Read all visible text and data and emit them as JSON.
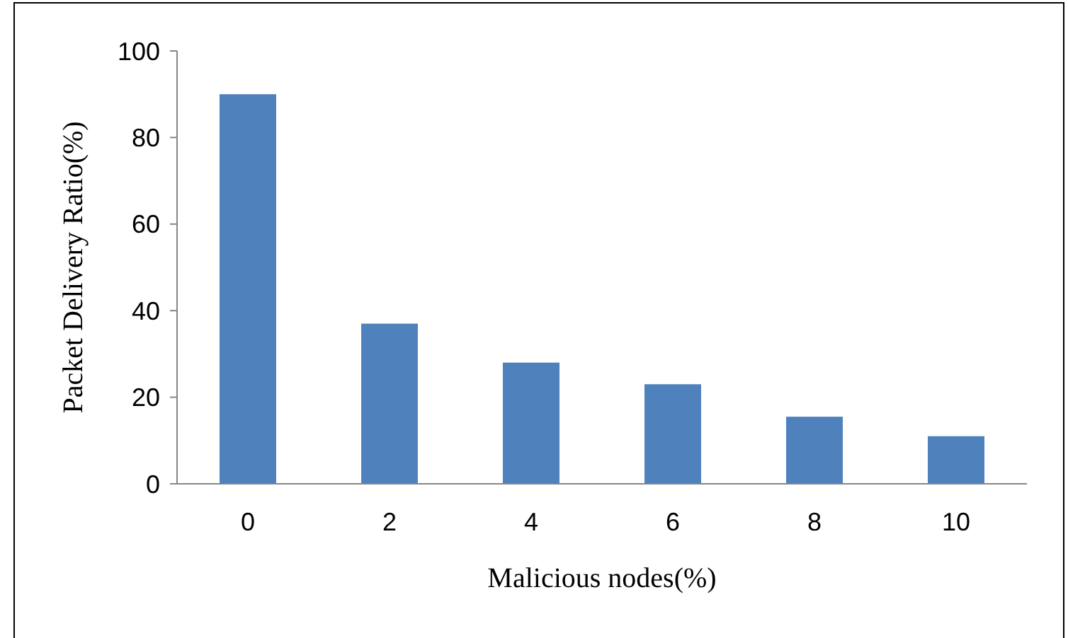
{
  "chart_data": {
    "type": "bar",
    "xlabel": "Malicious nodes(%)",
    "ylabel": "Packet Delivery Ratio(%)",
    "categories": [
      "0",
      "2",
      "4",
      "6",
      "8",
      "10"
    ],
    "values": [
      90,
      37,
      28,
      23,
      15.5,
      11
    ],
    "color": "#4f81bd",
    "ylim": [
      0,
      100
    ],
    "yticks": [
      0,
      20,
      40,
      60,
      80,
      100
    ],
    "grid": false
  }
}
